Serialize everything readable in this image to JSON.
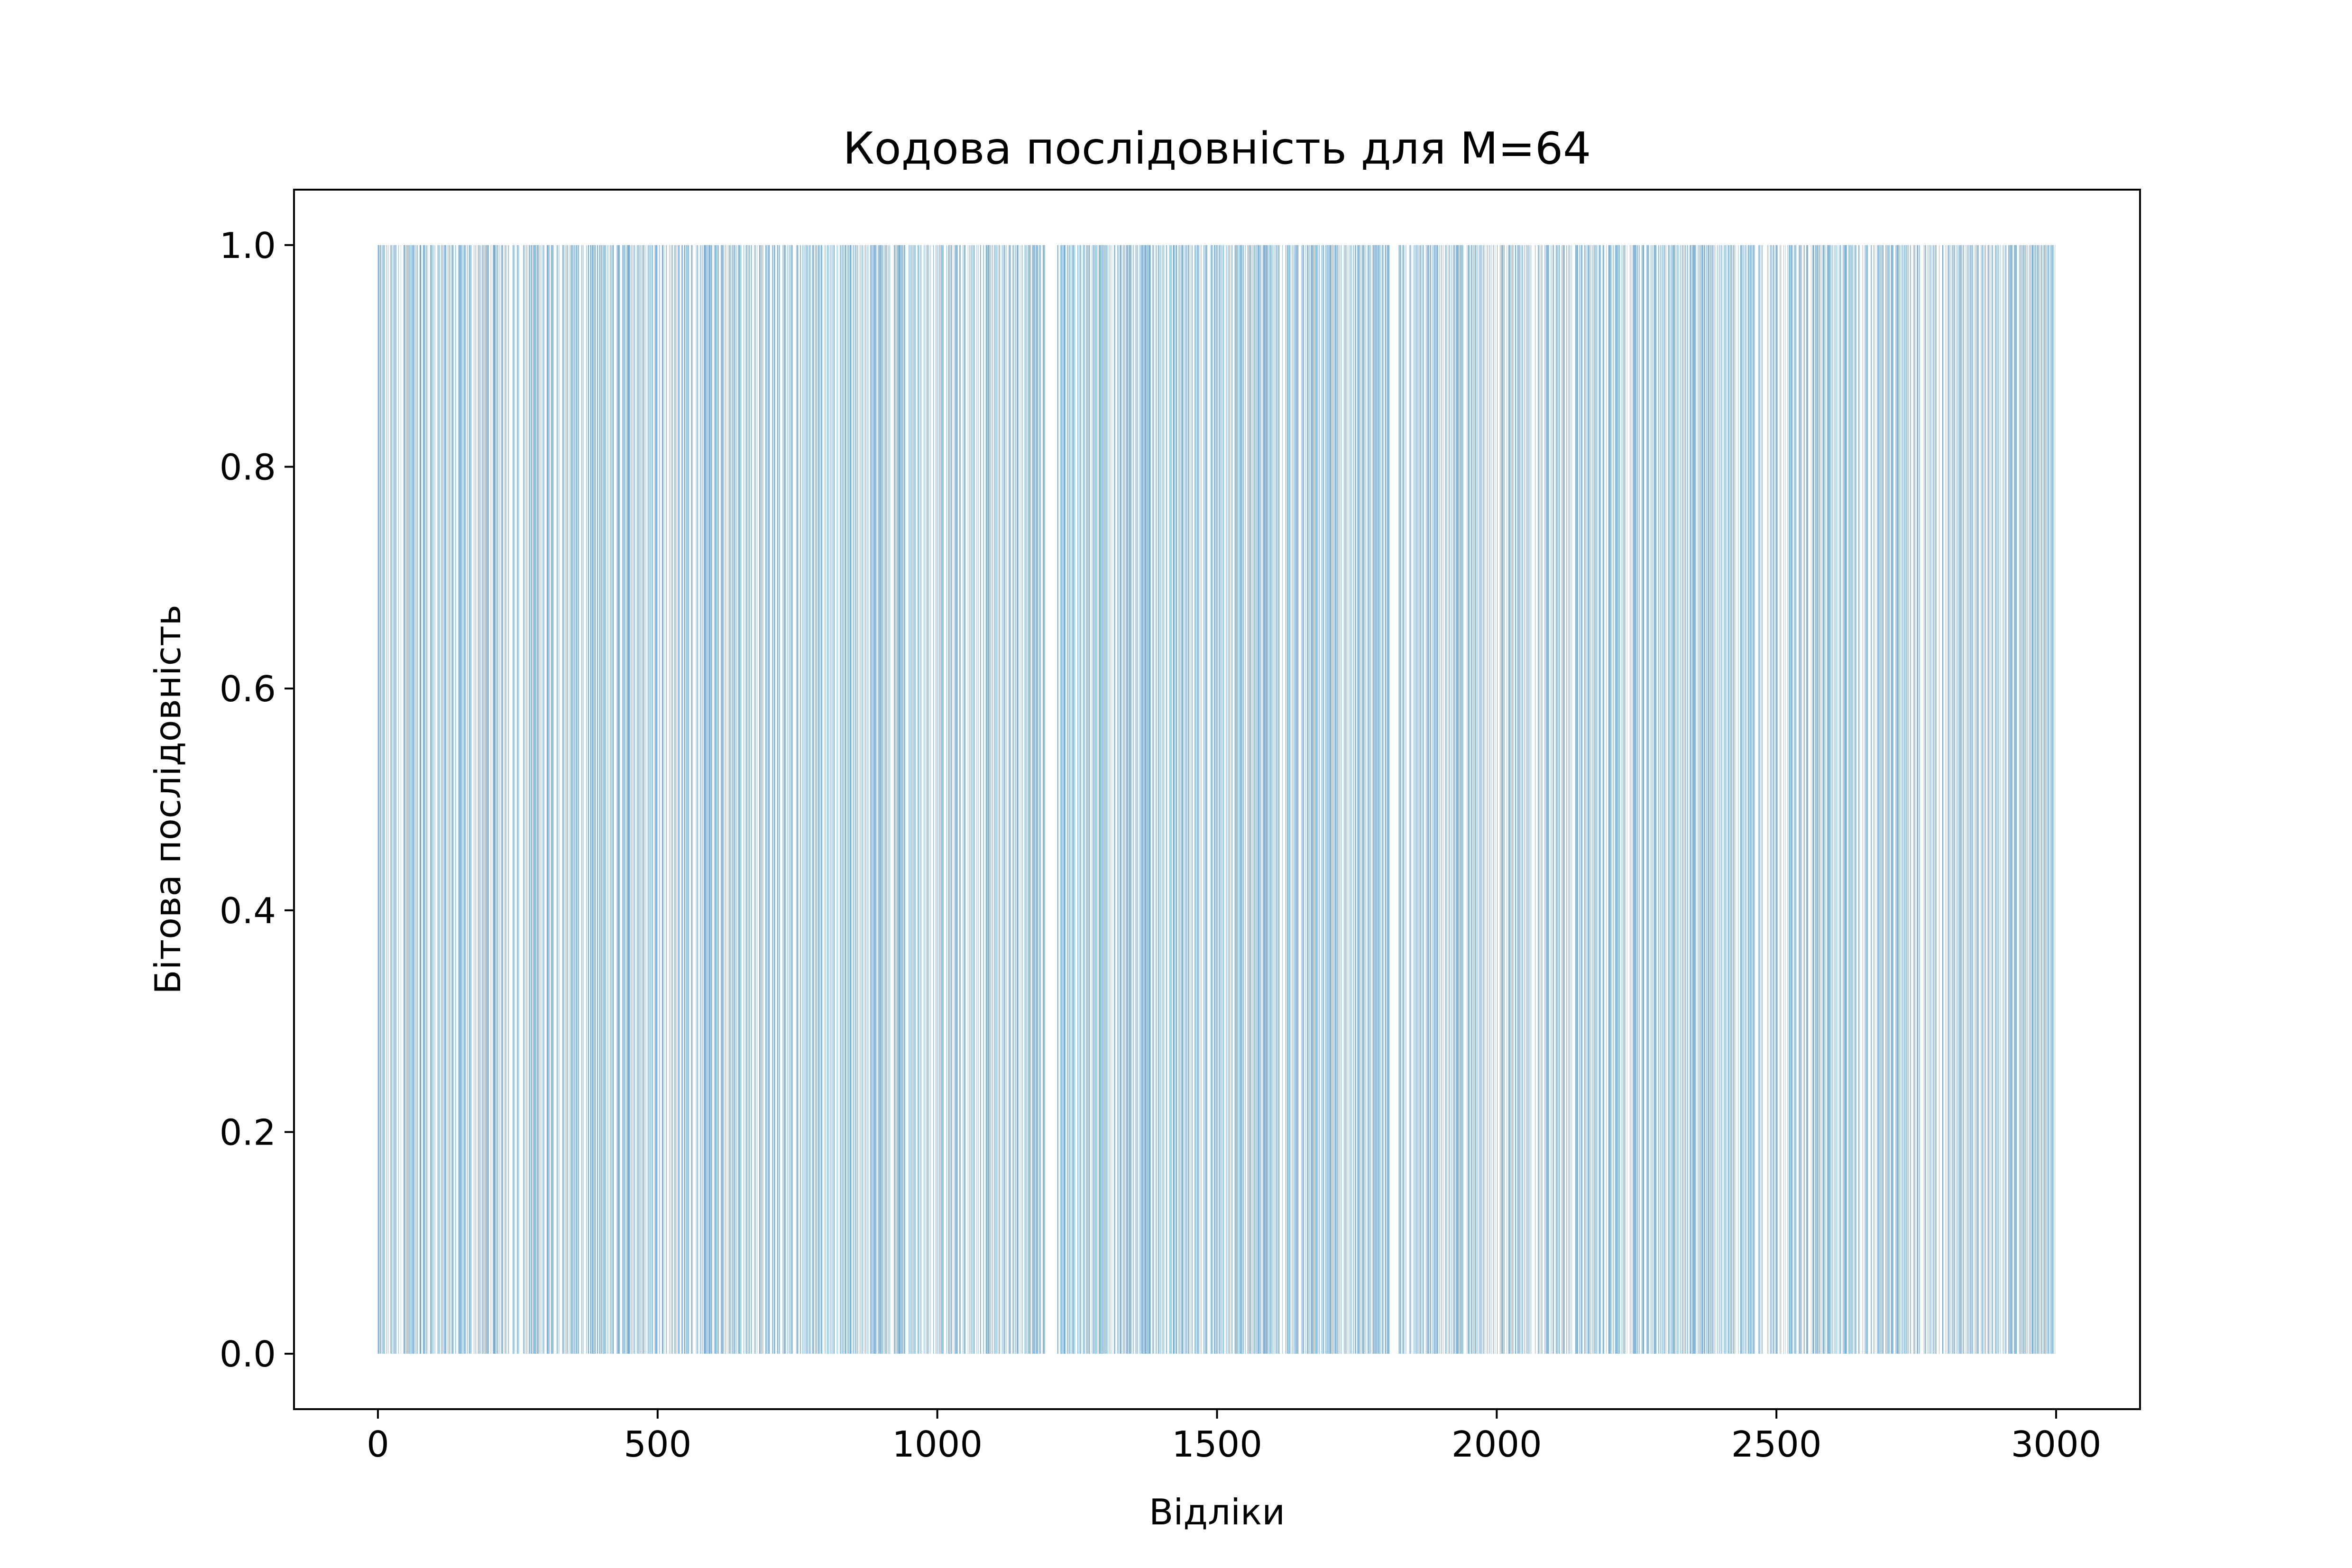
{
  "chart_data": {
    "type": "bar",
    "title": "Кодова послідовність для M=64",
    "xlabel": "Відліки",
    "ylabel": "Бітова послідовність",
    "xlim": [
      -150,
      3150
    ],
    "ylim": [
      -0.05,
      1.05
    ],
    "x_ticks": [
      0,
      500,
      1000,
      1500,
      2000,
      2500,
      3000
    ],
    "x_tick_labels": [
      "0",
      "500",
      "1000",
      "1500",
      "2000",
      "2500",
      "3000"
    ],
    "y_ticks": [
      0.0,
      0.2,
      0.4,
      0.6,
      0.8,
      1.0
    ],
    "y_tick_labels": [
      "0.0",
      "0.2",
      "0.4",
      "0.6",
      "0.8",
      "1.0"
    ],
    "grid": false,
    "legend": false,
    "bar_color": "#1f77b4",
    "n_samples": 3000,
    "bit_values": [
      0,
      1
    ],
    "one_bit_ranges": [
      [
        0,
        1193
      ],
      [
        1215,
        1808
      ],
      [
        1823,
        2999
      ]
    ]
  }
}
